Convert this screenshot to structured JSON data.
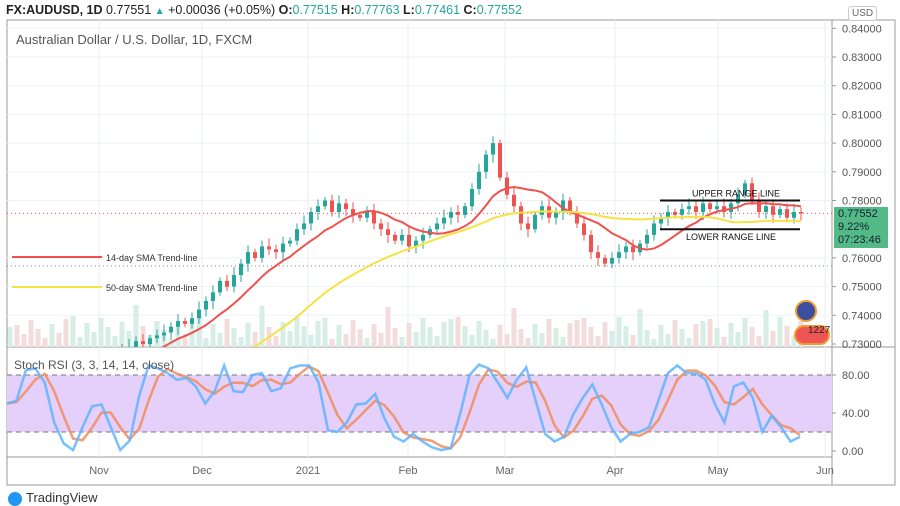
{
  "header": {
    "symbol": "FX:AUDUSD, 1D",
    "last": "0.77551",
    "change": "+0.00036 (+0.05%)",
    "o_label": "O:",
    "o": "0.77515",
    "h_label": "H:",
    "h": "0.77763",
    "l_label": "L:",
    "l": "0.77461",
    "c_label": "C:",
    "c": "0.77552"
  },
  "colors": {
    "up": "#26a69a",
    "down": "#ef5350",
    "sma14": "#f0514f",
    "sma50": "#f5e342",
    "k": "#5fb4ff",
    "d": "#f28c5a",
    "band": "#e5cffb",
    "price_label": "#53b987"
  },
  "chart_data": [
    {
      "type": "candlestick",
      "title": "Australian Dollar / U.S. Dollar, 1D, FXCM",
      "currency": "USD",
      "ylim": [
        0.73,
        0.84
      ],
      "yticks": [
        "0.84000",
        "0.83000",
        "0.82000",
        "0.81000",
        "0.80000",
        "0.79000",
        "0.78000",
        "0.76000",
        "0.75000",
        "0.74000",
        "0.73000"
      ],
      "xticks": [
        "Nov",
        "Dec",
        "2021",
        "Feb",
        "Mar",
        "Apr",
        "May",
        "Jun"
      ],
      "closes": [
        0.715,
        0.712,
        0.71,
        0.708,
        0.706,
        0.705,
        0.707,
        0.704,
        0.702,
        0.703,
        0.706,
        0.712,
        0.718,
        0.722,
        0.725,
        0.727,
        0.728,
        0.729,
        0.731,
        0.73,
        0.732,
        0.733,
        0.734,
        0.736,
        0.738,
        0.737,
        0.739,
        0.742,
        0.745,
        0.748,
        0.752,
        0.75,
        0.754,
        0.758,
        0.762,
        0.76,
        0.764,
        0.763,
        0.762,
        0.765,
        0.766,
        0.77,
        0.772,
        0.776,
        0.778,
        0.78,
        0.776,
        0.779,
        0.777,
        0.775,
        0.774,
        0.776,
        0.772,
        0.77,
        0.768,
        0.766,
        0.768,
        0.764,
        0.766,
        0.768,
        0.77,
        0.772,
        0.774,
        0.776,
        0.775,
        0.778,
        0.784,
        0.79,
        0.796,
        0.8,
        0.788,
        0.782,
        0.778,
        0.772,
        0.77,
        0.775,
        0.778,
        0.774,
        0.776,
        0.78,
        0.776,
        0.772,
        0.768,
        0.762,
        0.76,
        0.758,
        0.76,
        0.762,
        0.764,
        0.762,
        0.765,
        0.768,
        0.772,
        0.774,
        0.776,
        0.775,
        0.777,
        0.778,
        0.776,
        0.779,
        0.777,
        0.778,
        0.776,
        0.779,
        0.782,
        0.786,
        0.78,
        0.776,
        0.778,
        0.775,
        0.777,
        0.774,
        0.776,
        0.7755
      ],
      "last_label": {
        "price": "0.77552",
        "pct": "9.22%",
        "countdown": "07:23:46"
      },
      "annotations": {
        "sma14": "14-day SMA Trend-line",
        "sma50": "50-day SMA Trend-line",
        "upper": "UPPER RANGE LINE",
        "lower": "LOWER RANGE LINE",
        "upper_value": 0.78,
        "lower_value": 0.77,
        "event_count": "1227"
      }
    },
    {
      "type": "line",
      "title": "Stoch RSI (3, 3, 14, 14, close)",
      "ylim": [
        0,
        100
      ],
      "yticks": [
        "80.00",
        "40.00",
        "0.00"
      ],
      "band": [
        20,
        80
      ],
      "k": [
        50,
        53,
        85,
        87,
        72,
        30,
        8,
        1,
        25,
        47,
        49,
        25,
        1,
        11,
        58,
        90,
        87,
        82,
        75,
        77,
        68,
        50,
        63,
        90,
        63,
        62,
        80,
        82,
        63,
        66,
        87,
        90,
        90,
        72,
        22,
        20,
        30,
        49,
        50,
        60,
        34,
        15,
        10,
        18,
        10,
        4,
        1,
        3,
        39,
        80,
        91,
        87,
        72,
        56,
        75,
        88,
        53,
        18,
        10,
        15,
        39,
        56,
        70,
        49,
        25,
        10,
        18,
        20,
        25,
        53,
        82,
        90,
        82,
        82,
        75,
        49,
        30,
        68,
        72,
        56,
        20,
        37,
        25,
        10,
        15
      ]
    }
  ],
  "footer": {
    "brand": "TradingView"
  }
}
